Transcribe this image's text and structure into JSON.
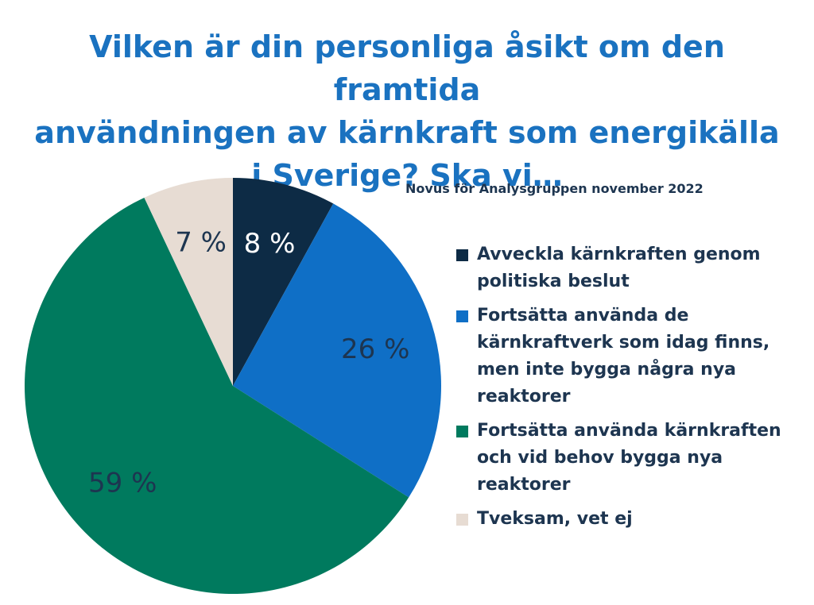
{
  "title_lines": [
    "Vilken är din personliga åsikt om den framtida",
    "användningen av kärnkraft som energikälla",
    "i Sverige? Ska vi…"
  ],
  "source": "Novus för Analysgruppen november 2022",
  "chart_data": {
    "type": "pie",
    "title": "Vilken är din personliga åsikt om den framtida användningen av kärnkraft som energikälla i Sverige? Ska vi…",
    "start_angle": "12 o'clock, clockwise",
    "slices": [
      {
        "label": "Avveckla kärnkraften genom politiska beslut",
        "value": 8,
        "display": "8 %",
        "color": "#0d2b45",
        "label_color": "#ffffff"
      },
      {
        "label": "Fortsätta använda de kärnkraftverk som idag finns, men inte bygga några nya reaktorer",
        "value": 26,
        "display": "26 %",
        "color": "#0f6fc6",
        "label_color": "#1d3550"
      },
      {
        "label": "Fortsätta använda kärnkraften och vid behov bygga nya reaktorer",
        "value": 59,
        "display": "59 %",
        "color": "#007a5e",
        "label_color": "#1d3550"
      },
      {
        "label": "Tveksam, vet ej",
        "value": 7,
        "display": "7 %",
        "color": "#e7dcd3",
        "label_color": "#1d3550"
      }
    ],
    "legend_position": "right"
  }
}
